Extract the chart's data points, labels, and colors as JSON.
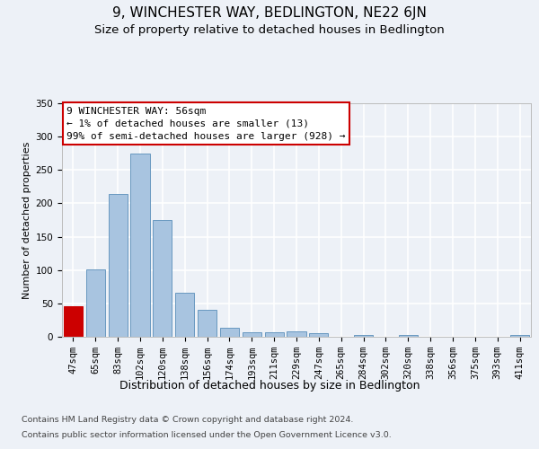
{
  "title1": "9, WINCHESTER WAY, BEDLINGTON, NE22 6JN",
  "title2": "Size of property relative to detached houses in Bedlington",
  "xlabel": "Distribution of detached houses by size in Bedlington",
  "ylabel": "Number of detached properties",
  "categories": [
    "47sqm",
    "65sqm",
    "83sqm",
    "102sqm",
    "120sqm",
    "138sqm",
    "156sqm",
    "174sqm",
    "193sqm",
    "211sqm",
    "229sqm",
    "247sqm",
    "265sqm",
    "284sqm",
    "302sqm",
    "320sqm",
    "338sqm",
    "356sqm",
    "375sqm",
    "393sqm",
    "411sqm"
  ],
  "values": [
    46,
    101,
    214,
    274,
    175,
    66,
    40,
    13,
    7,
    7,
    8,
    5,
    0,
    3,
    0,
    3,
    0,
    0,
    0,
    0,
    3
  ],
  "bar_color": "#a8c4e0",
  "bar_edge_color": "#6898c0",
  "highlight_bar_index": 0,
  "highlight_bar_color": "#cc0000",
  "highlight_bar_edge_color": "#cc0000",
  "annotation_line1": "9 WINCHESTER WAY: 56sqm",
  "annotation_line2": "← 1% of detached houses are smaller (13)",
  "annotation_line3": "99% of semi-detached houses are larger (928) →",
  "ylim": [
    0,
    350
  ],
  "yticks": [
    0,
    50,
    100,
    150,
    200,
    250,
    300,
    350
  ],
  "bg_color": "#edf1f7",
  "plot_bg_color": "#edf1f7",
  "grid_color": "#ffffff",
  "footer_line1": "Contains HM Land Registry data © Crown copyright and database right 2024.",
  "footer_line2": "Contains public sector information licensed under the Open Government Licence v3.0.",
  "title1_fontsize": 11,
  "title2_fontsize": 9.5,
  "xlabel_fontsize": 9,
  "ylabel_fontsize": 8,
  "tick_fontsize": 7.5,
  "annotation_fontsize": 8,
  "footer_fontsize": 6.8
}
